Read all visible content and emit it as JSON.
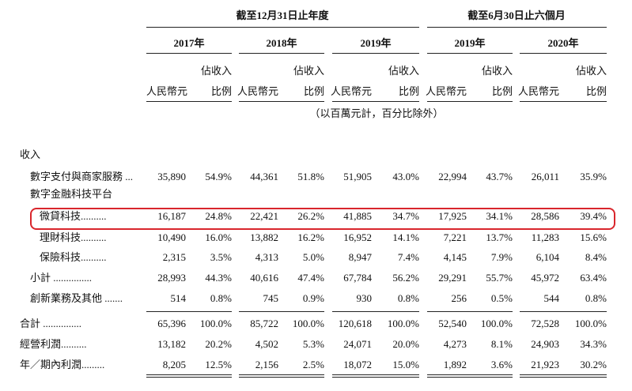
{
  "header": {
    "groups": [
      "截至12月31日止年度",
      "截至6月30日止六個月"
    ],
    "years": [
      "2017年",
      "2018年",
      "2019年",
      "2019年",
      "2020年"
    ],
    "columns": [
      {
        "amount": "人民幣元",
        "share": [
          "佔收入",
          "比例"
        ]
      },
      {
        "amount": "人民幣元",
        "share": [
          "佔收入",
          "比例"
        ]
      },
      {
        "amount": "人民幣元",
        "share": [
          "佔收入",
          "比例"
        ]
      },
      {
        "amount": "人民幣元",
        "share": [
          "佔收入",
          "比例"
        ]
      },
      {
        "amount": "人民幣元",
        "share": [
          "佔收入",
          "比例"
        ]
      }
    ],
    "unit_note": "（以百萬元計，百分比除外）"
  },
  "table": {
    "rows": [
      {
        "label": "收入"
      },
      {
        "label": "數字支付與商家服務 ...",
        "values": [
          "35,890",
          "54.9%",
          "44,361",
          "51.8%",
          "51,905",
          "43.0%",
          "22,994",
          "43.7%",
          "26,011",
          "35.9%"
        ]
      },
      {
        "label": "數字金融科技平台"
      },
      {
        "label": "微貸科技..........",
        "values": [
          "16,187",
          "24.8%",
          "22,421",
          "26.2%",
          "41,885",
          "34.7%",
          "17,925",
          "34.1%",
          "28,586",
          "39.4%"
        ]
      },
      {
        "label": "理財科技..........",
        "values": [
          "10,490",
          "16.0%",
          "13,882",
          "16.2%",
          "16,952",
          "14.1%",
          "7,221",
          "13.7%",
          "11,283",
          "15.6%"
        ]
      },
      {
        "label": "保險科技..........",
        "values": [
          "2,315",
          "3.5%",
          "4,313",
          "5.0%",
          "8,947",
          "7.4%",
          "4,145",
          "7.9%",
          "6,104",
          "8.4%"
        ]
      },
      {
        "label": "小計 ...............",
        "values": [
          "28,993",
          "44.3%",
          "40,616",
          "47.4%",
          "67,784",
          "56.2%",
          "29,291",
          "55.7%",
          "45,972",
          "63.4%"
        ]
      },
      {
        "label": "創新業務及其他 .......",
        "values": [
          "514",
          "0.8%",
          "745",
          "0.9%",
          "930",
          "0.8%",
          "256",
          "0.5%",
          "544",
          "0.8%"
        ]
      },
      {
        "label": "合計 ...............",
        "values": [
          "65,396",
          "100.0%",
          "85,722",
          "100.0%",
          "120,618",
          "100.0%",
          "52,540",
          "100.0%",
          "72,528",
          "100.0%"
        ]
      },
      {
        "label": "經營利潤..........",
        "values": [
          "13,182",
          "20.2%",
          "4,502",
          "5.3%",
          "24,071",
          "20.0%",
          "4,273",
          "8.1%",
          "24,903",
          "34.3%"
        ]
      },
      {
        "label": "年／期內利潤.........",
        "values": [
          "8,205",
          "12.5%",
          "2,156",
          "2.5%",
          "18,072",
          "15.0%",
          "1,892",
          "3.6%",
          "21,923",
          "30.2%"
        ]
      }
    ]
  }
}
